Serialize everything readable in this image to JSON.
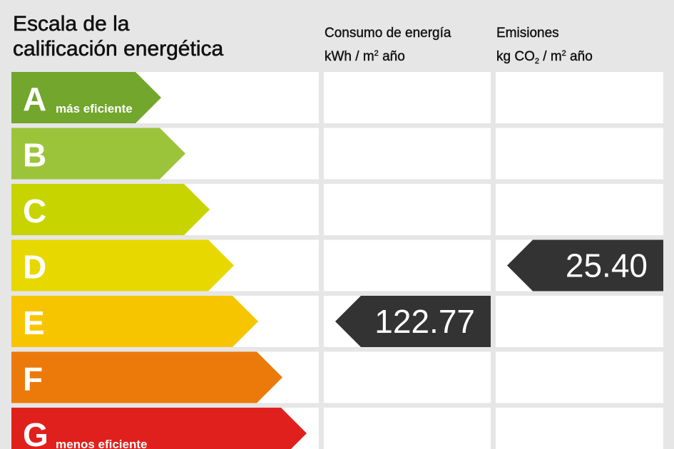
{
  "header": {
    "title_line1": "Escala de la",
    "title_line2": "calificación energética",
    "consumo_line1": "Consumo de energía",
    "consumo_unit_pre": "kWh / m",
    "consumo_unit_sup": "2",
    "consumo_unit_post": " año",
    "emisiones_line1": "Emisiones",
    "emisiones_unit_pre": "kg CO",
    "emisiones_unit_sub": "2",
    "emisiones_unit_mid": " / m",
    "emisiones_unit_sup": "2",
    "emisiones_unit_post": " año"
  },
  "chart_data": {
    "type": "bar",
    "categories": [
      "A",
      "B",
      "C",
      "D",
      "E",
      "F",
      "G"
    ],
    "bar_annotations": {
      "A": "más eficiente",
      "G": "menos eficiente"
    },
    "colors": [
      "#72a62c",
      "#9cc43a",
      "#c8d400",
      "#e7d800",
      "#f7c500",
      "#ec7a0a",
      "#e0201c"
    ],
    "consumo": {
      "rating": "E",
      "value": "122.77"
    },
    "emisiones": {
      "rating": "D",
      "value": "25.40"
    },
    "marker_color": "#333333"
  }
}
